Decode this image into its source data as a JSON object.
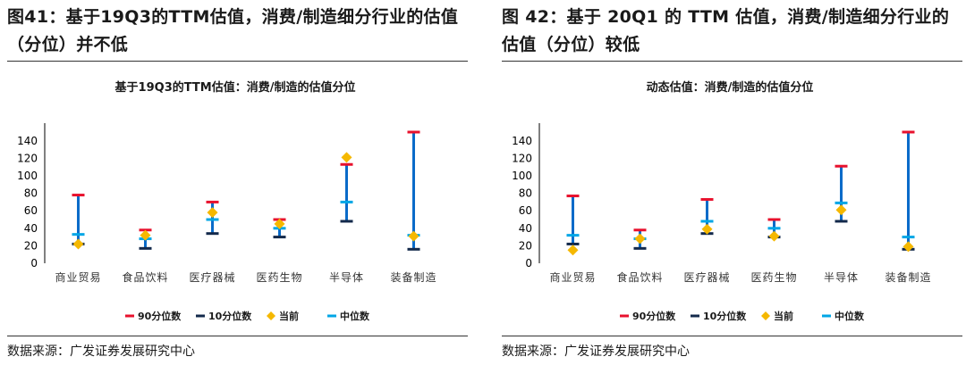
{
  "figures": [
    {
      "title": "图41：基于19Q3的TTM估值，消费/制造细分行业的估值（分位）并不低",
      "source": "数据来源：广发证券发展研究中心",
      "chart_data": {
        "type": "range-dot",
        "title": "基于19Q3的TTM估值：消费/制造的估值分位",
        "categories": [
          "商业贸易",
          "食品饮料",
          "医疗器械",
          "医药生物",
          "半导体",
          "装备制造"
        ],
        "ylim": [
          0,
          150
        ],
        "yticks": [
          0,
          20,
          40,
          60,
          80,
          100,
          120,
          140
        ],
        "series": [
          {
            "name": "90分位数",
            "marker": "hbar",
            "color": "#e8112d",
            "values": [
              78,
              38,
              70,
              50,
              113,
              150
            ]
          },
          {
            "name": "10分位数",
            "marker": "hbar",
            "color": "#13294b",
            "values": [
              22,
              17,
              34,
              30,
              48,
              16
            ]
          },
          {
            "name": "当前",
            "marker": "diamond",
            "color": "#f5b800",
            "values": [
              22,
              32,
              58,
              45,
              121,
              31
            ]
          },
          {
            "name": "中位数",
            "marker": "hbar",
            "color": "#00a6e6",
            "values": [
              33,
              28,
              50,
              40,
              70,
              32
            ]
          }
        ],
        "range_line_color": "#0a6bc9",
        "legend_position": "bottom"
      }
    },
    {
      "title": "图 42：基于 20Q1 的 TTM 估值，消费/制造细分行业的估值（分位）较低",
      "source": "数据来源：广发证券发展研究中心",
      "chart_data": {
        "type": "range-dot",
        "title": "动态估值：消费/制造的估值分位",
        "categories": [
          "商业贸易",
          "食品饮料",
          "医疗器械",
          "医药生物",
          "半导体",
          "装备制造"
        ],
        "ylim": [
          0,
          150
        ],
        "yticks": [
          0,
          20,
          40,
          60,
          80,
          100,
          120,
          140
        ],
        "series": [
          {
            "name": "90分位数",
            "marker": "hbar",
            "color": "#e8112d",
            "values": [
              77,
              38,
              73,
              50,
              111,
              150
            ]
          },
          {
            "name": "10分位数",
            "marker": "hbar",
            "color": "#13294b",
            "values": [
              22,
              17,
              34,
              30,
              48,
              16
            ]
          },
          {
            "name": "当前",
            "marker": "diamond",
            "color": "#f5b800",
            "values": [
              15,
              28,
              39,
              31,
              61,
              19
            ]
          },
          {
            "name": "中位数",
            "marker": "hbar",
            "color": "#00a6e6",
            "values": [
              32,
              28,
              48,
              40,
              69,
              30
            ]
          }
        ],
        "range_line_color": "#0a6bc9",
        "legend_position": "bottom"
      }
    }
  ]
}
